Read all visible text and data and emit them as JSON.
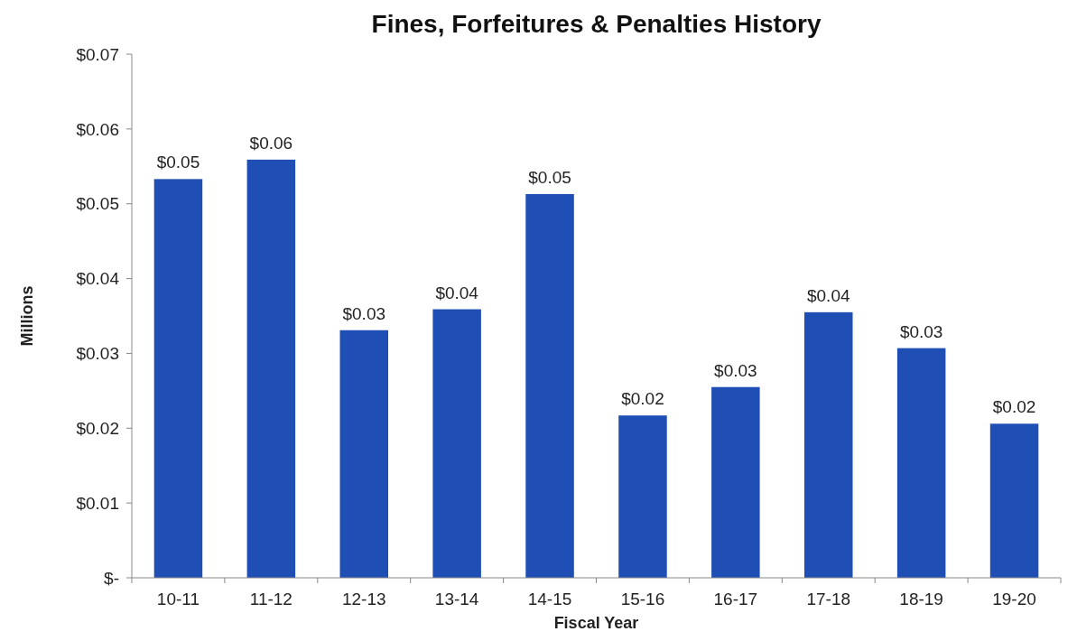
{
  "chart_data": {
    "type": "bar",
    "title": "Fines, Forfeitures & Penalties History",
    "xlabel": "Fiscal Year",
    "ylabel": "Millions",
    "categories": [
      "10-11",
      "11-12",
      "12-13",
      "13-14",
      "14-15",
      "15-16",
      "16-17",
      "17-18",
      "18-19",
      "19-20"
    ],
    "values": [
      0.0533,
      0.0559,
      0.0331,
      0.0359,
      0.0513,
      0.0217,
      0.0255,
      0.0355,
      0.0307,
      0.0206
    ],
    "value_labels": [
      "$0.05",
      "$0.06",
      "$0.03",
      "$0.04",
      "$0.05",
      "$0.02",
      "$0.03",
      "$0.04",
      "$0.03",
      "$0.02"
    ],
    "color": "#1f4fb4",
    "ylim": [
      0,
      0.07
    ],
    "yticks": [
      {
        "value": 0,
        "label": "$-"
      },
      {
        "value": 0.01,
        "label": "$0.01"
      },
      {
        "value": 0.02,
        "label": "$0.02"
      },
      {
        "value": 0.03,
        "label": "$0.03"
      },
      {
        "value": 0.04,
        "label": "$0.04"
      },
      {
        "value": 0.05,
        "label": "$0.05"
      },
      {
        "value": 0.06,
        "label": "$0.06"
      },
      {
        "value": 0.07,
        "label": "$0.07"
      }
    ],
    "grid": false
  }
}
